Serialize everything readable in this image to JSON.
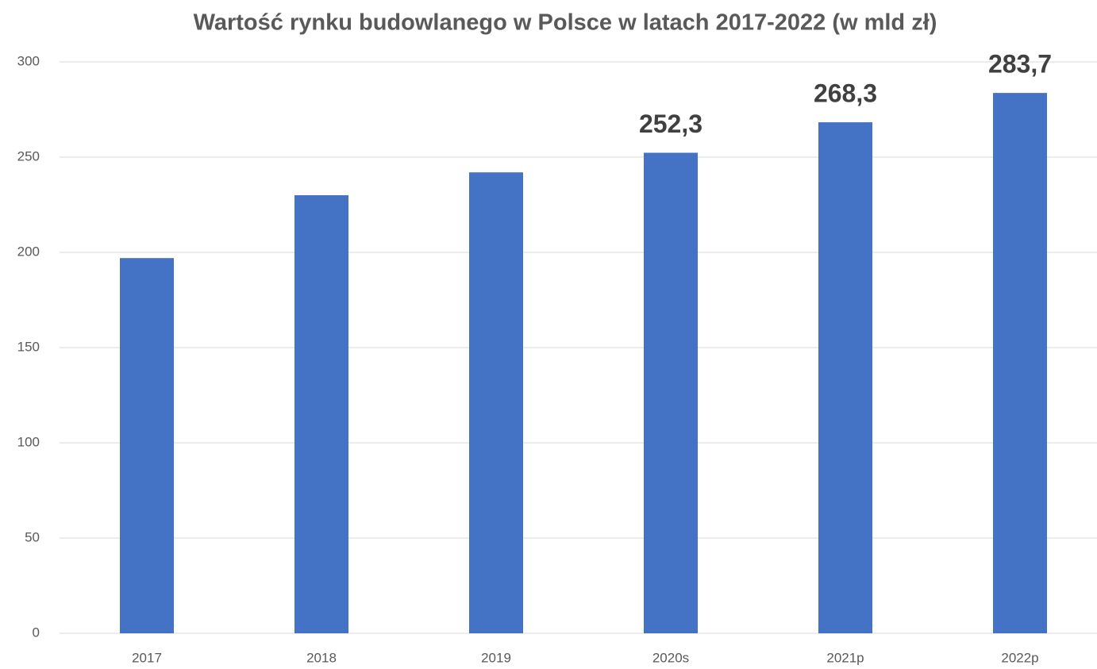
{
  "chart_data": {
    "type": "bar",
    "title": "Wartość rynku budowlanego w Polsce w latach 2017-2022 (w mld zł)",
    "categories": [
      "2017",
      "2018",
      "2019",
      "2020s",
      "2021p",
      "2022p"
    ],
    "values": [
      197,
      230,
      242,
      252.3,
      268.3,
      283.7
    ],
    "value_labels": [
      null,
      null,
      null,
      "252,3",
      "268,3",
      "283,7"
    ],
    "color": "#4472c4",
    "ylim": [
      0,
      300
    ],
    "yticks": [
      0,
      50,
      100,
      150,
      200,
      250,
      300
    ],
    "grid": true
  }
}
